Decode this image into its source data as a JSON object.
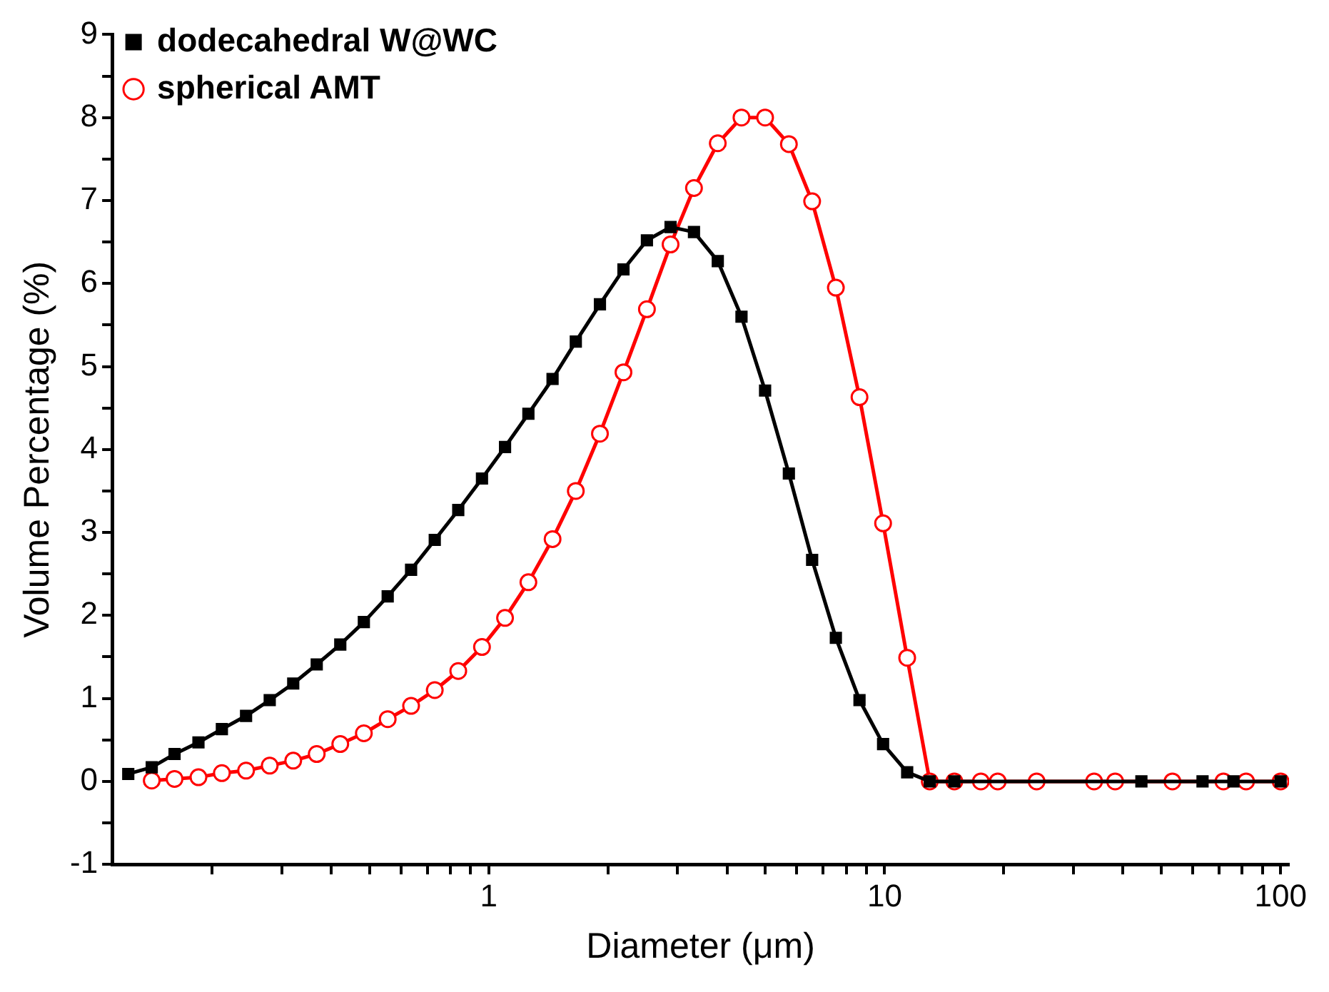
{
  "chart_data": {
    "type": "line",
    "xlabel": "Diameter (μm)",
    "ylabel": "Volume Percentage (%)",
    "log": "x",
    "xlim": [
      0.112,
      105
    ],
    "ylim": [
      -1,
      9
    ],
    "xticks": [
      {
        "value": 0.2,
        "label": null
      },
      {
        "value": 0.3,
        "label": null
      },
      {
        "value": 0.4,
        "label": null
      },
      {
        "value": 0.5,
        "label": null
      },
      {
        "value": 0.6,
        "label": null
      },
      {
        "value": 0.7,
        "label": null
      },
      {
        "value": 0.8,
        "label": null
      },
      {
        "value": 0.9,
        "label": null
      },
      1,
      {
        "value": 2,
        "label": null
      },
      {
        "value": 3,
        "label": null
      },
      {
        "value": 4,
        "label": null
      },
      {
        "value": 5,
        "label": null
      },
      {
        "value": 6,
        "label": null
      },
      {
        "value": 7,
        "label": null
      },
      {
        "value": 8,
        "label": null
      },
      {
        "value": 9,
        "label": null
      },
      10,
      {
        "value": 20,
        "label": null
      },
      {
        "value": 30,
        "label": null
      },
      {
        "value": 40,
        "label": null
      },
      {
        "value": 50,
        "label": null
      },
      {
        "value": 60,
        "label": null
      },
      {
        "value": 70,
        "label": null
      },
      {
        "value": 80,
        "label": null
      },
      {
        "value": 90,
        "label": null
      },
      100
    ],
    "yticks": [
      -1,
      {
        "value": -0.5,
        "label": null
      },
      0,
      {
        "value": 0.5,
        "label": null
      },
      1,
      {
        "value": 1.5,
        "label": null
      },
      2,
      {
        "value": 2.5,
        "label": null
      },
      3,
      {
        "value": 3.5,
        "label": null
      },
      4,
      {
        "value": 4.5,
        "label": null
      },
      5,
      {
        "value": 5.5,
        "label": null
      },
      6,
      {
        "value": 6.5,
        "label": null
      },
      7,
      {
        "value": 7.5,
        "label": null
      },
      8,
      {
        "value": 8.5,
        "label": null
      },
      9
    ],
    "grid": false,
    "legend": "top left",
    "line_style": "solid",
    "series": [
      {
        "name": "dodecahedral W@WC",
        "color": "#000000",
        "marker": "square",
        "x": [
          0.123,
          0.141,
          0.161,
          0.185,
          0.212,
          0.244,
          0.28,
          0.321,
          0.368,
          0.422,
          0.484,
          0.556,
          0.637,
          0.731,
          0.838,
          0.962,
          1.1,
          1.26,
          1.45,
          1.66,
          1.91,
          2.19,
          2.51,
          2.88,
          3.3,
          3.79,
          4.35,
          4.99,
          5.73,
          6.56,
          7.53,
          8.64,
          9.91,
          11.4,
          13.0,
          15.0,
          44.5,
          63.5,
          76,
          100
        ],
        "values": [
          0.09,
          0.17,
          0.33,
          0.47,
          0.63,
          0.79,
          0.98,
          1.18,
          1.41,
          1.65,
          1.92,
          2.23,
          2.55,
          2.91,
          3.27,
          3.65,
          4.03,
          4.43,
          4.85,
          5.3,
          5.75,
          6.17,
          6.52,
          6.68,
          6.62,
          6.27,
          5.6,
          4.71,
          3.71,
          2.67,
          1.73,
          0.98,
          0.45,
          0.11,
          0,
          0,
          0,
          0,
          0,
          0
        ]
      },
      {
        "name": "spherical AMT",
        "color": "#ff0000",
        "marker": "circle",
        "x": [
          0.141,
          0.161,
          0.185,
          0.212,
          0.244,
          0.28,
          0.321,
          0.368,
          0.422,
          0.484,
          0.556,
          0.637,
          0.731,
          0.838,
          0.962,
          1.1,
          1.26,
          1.45,
          1.66,
          1.91,
          2.19,
          2.51,
          2.88,
          3.3,
          3.79,
          4.35,
          4.99,
          5.73,
          6.56,
          7.53,
          8.64,
          9.91,
          11.4,
          13.0,
          15.0,
          17.5,
          19.3,
          24.2,
          33.8,
          38.2,
          53.3,
          71.7,
          81.8,
          100
        ],
        "values": [
          0.01,
          0.03,
          0.05,
          0.1,
          0.13,
          0.19,
          0.25,
          0.33,
          0.45,
          0.58,
          0.75,
          0.91,
          1.1,
          1.33,
          1.62,
          1.97,
          2.4,
          2.92,
          3.5,
          4.19,
          4.93,
          5.69,
          6.47,
          7.15,
          7.69,
          8.0,
          8.0,
          7.68,
          6.99,
          5.95,
          4.63,
          3.11,
          1.49,
          0,
          0,
          0,
          0,
          0,
          0,
          0,
          0,
          0,
          0,
          0
        ]
      }
    ]
  }
}
